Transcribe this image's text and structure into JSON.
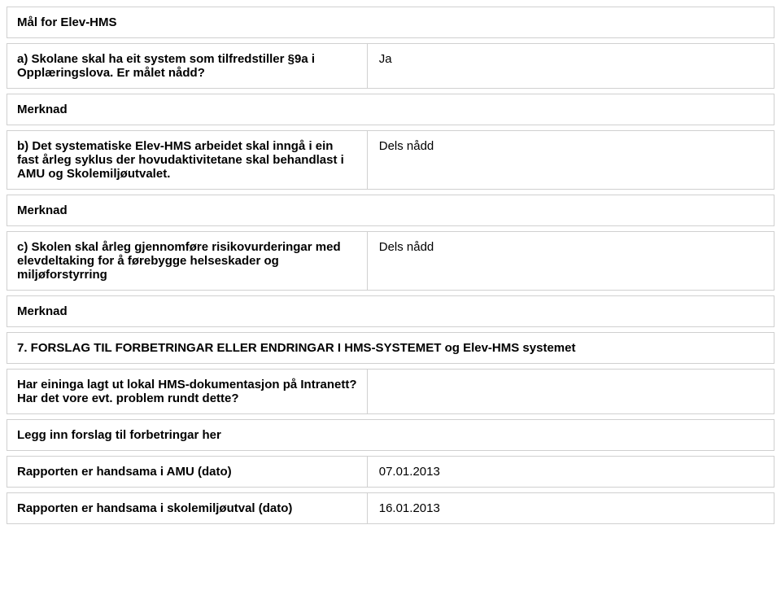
{
  "section_a_title": "Mål for Elev-HMS",
  "item_a": {
    "label": "a) Skolane skal ha eit system som tilfredstiller §9a i Opplæringslova. Er målet nådd?",
    "value": "Ja"
  },
  "merknad_a": "Merknad",
  "item_b": {
    "label": "b) Det systematiske Elev-HMS arbeidet skal inngå i ein fast årleg syklus der hovudaktivitetane skal behandlast i AMU og Skolemiljøutvalet.",
    "value": "Dels nådd"
  },
  "merknad_b": "Merknad",
  "item_c": {
    "label": "c) Skolen skal årleg gjennomføre risikovurderingar med elevdeltaking for å førebygge helseskader og miljøforstyrring",
    "value": "Dels nådd"
  },
  "merknad_c": "Merknad",
  "section7_title": "7. FORSLAG TIL FORBETRINGAR ELLER ENDRINGAR I HMS-SYSTEMET og Elev-HMS systemet",
  "item_d": {
    "label": "Har eininga lagt ut lokal HMS-dokumentasjon på Intranett? Har det vore evt. problem rundt dette?",
    "value": ""
  },
  "forslag_label": "Legg inn forslag til forbetringar her",
  "rapport_amu": {
    "label": "Rapporten er handsama i AMU (dato)",
    "value": "07.01.2013"
  },
  "rapport_skole": {
    "label": "Rapporten er handsama i skolemiljøutval (dato)",
    "value": "16.01.2013"
  }
}
